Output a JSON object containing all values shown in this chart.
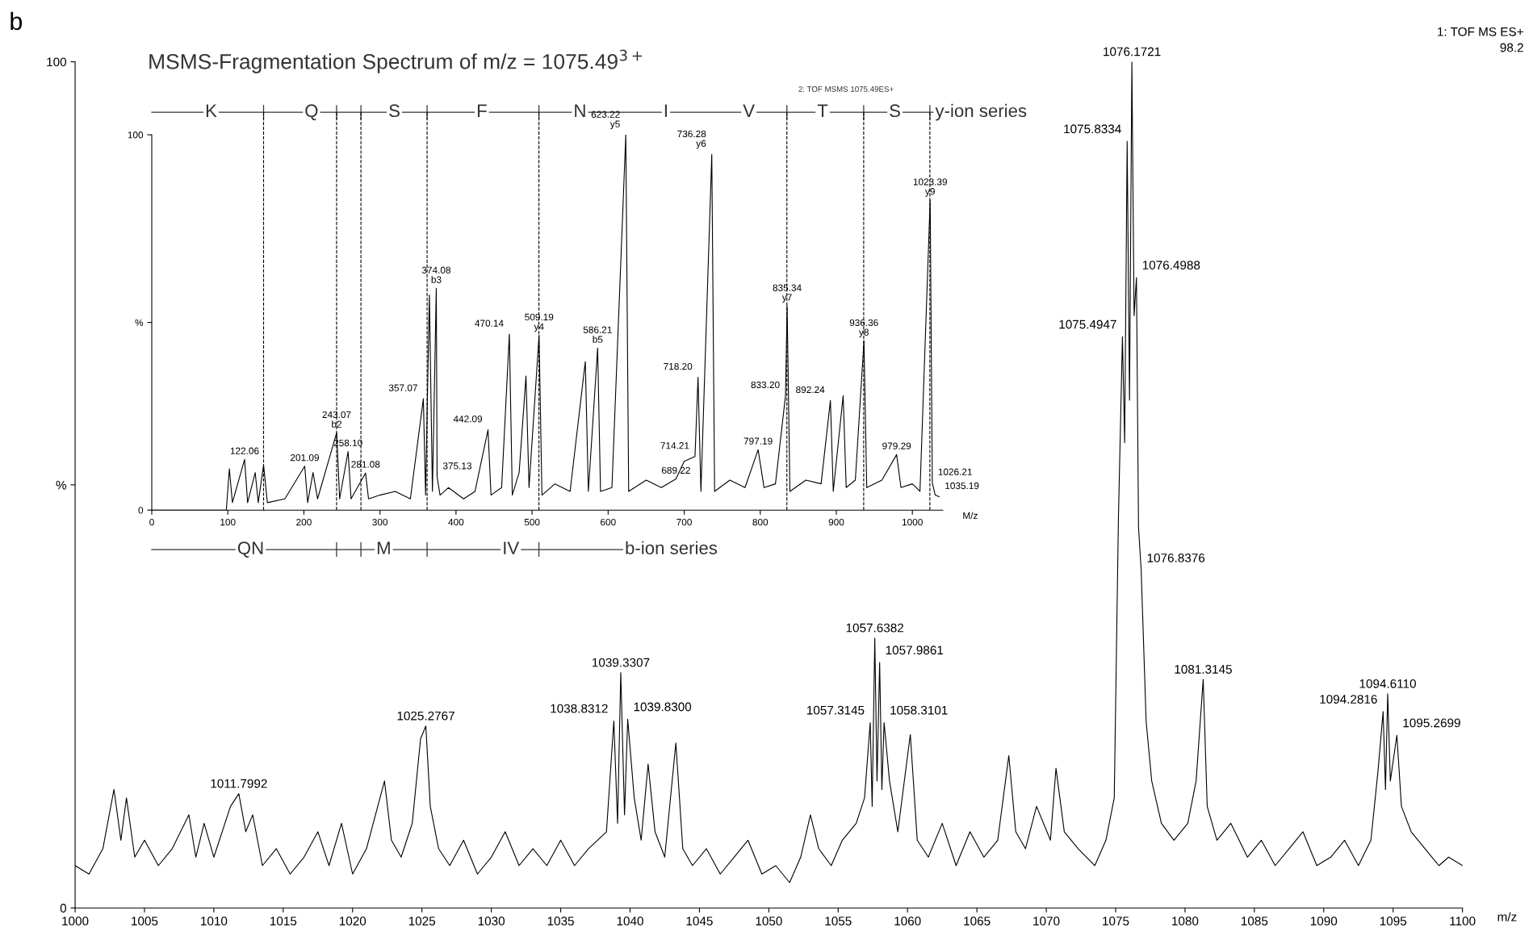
{
  "chart_data": [
    {
      "type": "line",
      "xlabel": "m/z",
      "xlim": [
        1000,
        1100
      ],
      "ylim": [
        0,
        100
      ],
      "xticks": [
        1000,
        1005,
        1010,
        1015,
        1020,
        1025,
        1030,
        1035,
        1040,
        1045,
        1050,
        1055,
        1060,
        1065,
        1070,
        1075,
        1080,
        1085,
        1090,
        1095,
        1100
      ],
      "yticks": [
        0,
        {
          "value": 50,
          "label": "%"
        },
        100
      ],
      "annotations": [
        "b",
        "1: TOF MS ES+",
        "98.2",
        {
          "text": "1011.7992",
          "x": 1011.8,
          "y": 13.5
        },
        {
          "text": "1025.2767",
          "x": 1025.28,
          "y": 21.5
        },
        {
          "text": "1038.8312",
          "x": 1038.83,
          "y": 22.1
        },
        {
          "text": "1039.3307",
          "x": 1039.33,
          "y": 27.8
        },
        {
          "text": "1039.8300",
          "x": 1039.83,
          "y": 22.3
        },
        {
          "text": "1057.3145",
          "x": 1057.31,
          "y": 21.9
        },
        {
          "text": "1057.6382",
          "x": 1057.64,
          "y": 31.9
        },
        {
          "text": "1057.9861",
          "x": 1057.99,
          "y": 29
        },
        {
          "text": "1058.3101",
          "x": 1058.31,
          "y": 21.9
        },
        {
          "text": "1075.4947",
          "x": 1075.49,
          "y": 67.5
        },
        {
          "text": "1075.8334",
          "x": 1075.83,
          "y": 90.6
        },
        {
          "text": "1076.1721",
          "x": 1076.17,
          "y": 100
        },
        {
          "text": "1076.4988",
          "x": 1076.5,
          "y": 74.5
        },
        {
          "text": "1076.8376",
          "x": 1076.84,
          "y": 39.9
        },
        {
          "text": "1081.3145",
          "x": 1081.31,
          "y": 27
        },
        {
          "text": "1094.2816",
          "x": 1094.28,
          "y": 23.2
        },
        {
          "text": "1094.6110",
          "x": 1094.61,
          "y": 25.3
        },
        {
          "text": "1095.2699",
          "x": 1095.27,
          "y": 20.4
        }
      ],
      "series": [
        {
          "color": "#000000",
          "x": [
            1000,
            1001,
            1002,
            1002.8,
            1003.3,
            1003.7,
            1004.3,
            1005,
            1006,
            1007,
            1008.2,
            1008.7,
            1009.3,
            1010,
            1011.2,
            1011.8,
            1012.3,
            1012.8,
            1013.5,
            1014.5,
            1015.5,
            1016.5,
            1017.5,
            1018.3,
            1019.2,
            1020,
            1021,
            1022.3,
            1022.8,
            1023.5,
            1024.3,
            1024.9,
            1025.28,
            1025.6,
            1026.2,
            1027,
            1028,
            1029,
            1030,
            1031,
            1032,
            1033,
            1034,
            1035,
            1036,
            1037,
            1038.3,
            1038.83,
            1039.1,
            1039.33,
            1039.6,
            1039.83,
            1040.3,
            1040.8,
            1041.3,
            1041.8,
            1042.5,
            1043.3,
            1043.8,
            1044.5,
            1045.5,
            1046.5,
            1047.5,
            1048.5,
            1049.5,
            1050.5,
            1051.5,
            1052.3,
            1053,
            1053.6,
            1054.5,
            1055.3,
            1056.3,
            1056.9,
            1057.31,
            1057.45,
            1057.64,
            1057.8,
            1057.99,
            1058.15,
            1058.31,
            1058.7,
            1059.3,
            1060.2,
            1060.7,
            1061.5,
            1062.5,
            1063.5,
            1064.5,
            1065.5,
            1066.5,
            1067.3,
            1067.8,
            1068.5,
            1069.3,
            1070.3,
            1070.7,
            1071.3,
            1072.3,
            1073.5,
            1074.3,
            1074.9,
            1075.2,
            1075.49,
            1075.65,
            1075.83,
            1076.0,
            1076.17,
            1076.33,
            1076.5,
            1076.65,
            1076.84,
            1077.2,
            1077.6,
            1078.3,
            1079.2,
            1080.2,
            1080.8,
            1081.31,
            1081.6,
            1082.3,
            1083.3,
            1084.5,
            1085.5,
            1086.5,
            1087.5,
            1088.5,
            1089.5,
            1090.5,
            1091.5,
            1092.5,
            1093.4,
            1093.9,
            1094.28,
            1094.45,
            1094.61,
            1094.8,
            1095.27,
            1095.6,
            1096.3,
            1097.3,
            1098.3,
            1099,
            1100
          ],
          "values": [
            5,
            4,
            7,
            14,
            8,
            13,
            6,
            8,
            5,
            7,
            11,
            6,
            10,
            6,
            12,
            13.5,
            9,
            11,
            5,
            7,
            4,
            6,
            9,
            5,
            10,
            4,
            7,
            15,
            8,
            6,
            10,
            20,
            21.5,
            12,
            7,
            5,
            8,
            4,
            6,
            9,
            5,
            7,
            5,
            8,
            5,
            7,
            9,
            22.1,
            10,
            27.8,
            11,
            22.3,
            13,
            8,
            17,
            9,
            6,
            19.5,
            7,
            5,
            7,
            4,
            6,
            8,
            4,
            5,
            3,
            6,
            11,
            7,
            5,
            8,
            10,
            13,
            21.9,
            12,
            31.9,
            15,
            29,
            14,
            21.9,
            15,
            9,
            20.5,
            8,
            6,
            10,
            5,
            9,
            6,
            8,
            18,
            9,
            7,
            12,
            8,
            16.5,
            9,
            7,
            5,
            8,
            13,
            46,
            67.5,
            55,
            90.6,
            60,
            100,
            70,
            74.5,
            45,
            39.9,
            22,
            15,
            10,
            8,
            10,
            15,
            27,
            12,
            8,
            10,
            6,
            8,
            5,
            7,
            9,
            5,
            6,
            8,
            5,
            8,
            16,
            23.2,
            14,
            25.3,
            15,
            20.4,
            12,
            9,
            7,
            5,
            6,
            5
          ]
        }
      ]
    },
    {
      "type": "line",
      "title": "MSMS-Fragmentation Spectrum of m/z = 1075.49$^{3+}$",
      "xlabel": "M/z",
      "xlim": [
        0,
        1040
      ],
      "ylim": [
        0,
        100
      ],
      "xticks": [
        0,
        100,
        200,
        300,
        400,
        500,
        600,
        700,
        800,
        900,
        1000
      ],
      "yticks": [
        0,
        {
          "value": 50,
          "label": "%"
        },
        100
      ],
      "annotations": [
        "K",
        "Q",
        "S",
        "F",
        "N",
        "I",
        "V",
        "T",
        "S",
        "y-ion series",
        "QN",
        "M",
        "IV",
        "b-ion series",
        "2: TOF MSMS 1075.49ES+",
        {
          "text": "122.06",
          "x": 122.06,
          "y": 13.5
        },
        {
          "text": "201.09",
          "x": 201.09,
          "y": 11.7
        },
        {
          "text": "243.07\nb2",
          "x": 243.07,
          "y": 20.6
        },
        {
          "text": "258.10",
          "x": 258.1,
          "y": 15.6
        },
        {
          "text": "281.08",
          "x": 281.08,
          "y": 9.9
        },
        {
          "text": "357.07",
          "x": 357.07,
          "y": 29.7
        },
        {
          "text": "374.08\nb3",
          "x": 374.08,
          "y": 59.1
        },
        {
          "text": "375.13",
          "x": 375.13,
          "y": 8.9
        },
        {
          "text": "442.09",
          "x": 442.09,
          "y": 21.4
        },
        {
          "text": "470.14",
          "x": 470.14,
          "y": 46.9
        },
        {
          "text": "509.19\ny4",
          "x": 509.19,
          "y": 46.6
        },
        {
          "text": "586.21\nb5",
          "x": 586.21,
          "y": 43.2
        },
        {
          "text": "623.22\ny5",
          "x": 623.22,
          "y": 100
        },
        {
          "text": "689.22",
          "x": 689.22,
          "y": 8.3
        },
        {
          "text": "714.21",
          "x": 714.21,
          "y": 14.3
        },
        {
          "text": "718.20",
          "x": 718.2,
          "y": 35.4
        },
        {
          "text": "736.28\ny6",
          "x": 736.28,
          "y": 94.8
        },
        {
          "text": "797.19",
          "x": 797.19,
          "y": 16.1
        },
        {
          "text": "833.20",
          "x": 833.2,
          "y": 30.5
        },
        {
          "text": "835.34\ny7",
          "x": 835.34,
          "y": 54.4
        },
        {
          "text": "892.24",
          "x": 892.24,
          "y": 29.2
        },
        {
          "text": "936.36\ny8",
          "x": 936.36,
          "y": 45.1
        },
        {
          "text": "979.29",
          "x": 979.29,
          "y": 14.8
        },
        {
          "text": "1023.39\ny9",
          "x": 1023.39,
          "y": 82.6
        },
        {
          "text": "1026.21",
          "x": 1026.21,
          "y": 7.3
        },
        {
          "text": "1035.19",
          "x": 1035.19,
          "y": 3.6
        }
      ],
      "ref_lines": [
        {
          "axis": "x",
          "value": 147,
          "line_style": "dashed"
        },
        {
          "axis": "x",
          "value": 243,
          "line_style": "dashed"
        },
        {
          "axis": "x",
          "value": 275,
          "line_style": "dashed"
        },
        {
          "axis": "x",
          "value": 362,
          "line_style": "dashed"
        },
        {
          "axis": "x",
          "value": 509,
          "line_style": "dashed"
        },
        {
          "axis": "x",
          "value": 835,
          "line_style": "dashed"
        },
        {
          "axis": "x",
          "value": 936,
          "line_style": "dashed"
        },
        {
          "axis": "x",
          "value": 1023,
          "line_style": "dashed"
        }
      ],
      "series": [
        {
          "color": "#000000",
          "x": [
            0,
            98,
            102,
            106,
            122.06,
            126,
            136,
            140,
            147,
            152,
            175,
            201.09,
            205,
            212,
            218,
            243.07,
            247,
            258.1,
            262,
            281.08,
            285,
            300,
            320,
            340,
            357.07,
            360,
            365,
            369,
            374.08,
            375.13,
            379,
            390,
            410,
            425,
            442.09,
            446,
            460,
            470.14,
            474,
            483,
            492,
            496,
            509.19,
            513,
            530,
            550,
            570,
            574,
            586.21,
            590,
            605,
            623.22,
            627,
            650,
            670,
            689.22,
            700,
            714.21,
            718.2,
            722,
            736.28,
            740,
            760,
            780,
            797.19,
            805,
            820,
            833.2,
            835.34,
            839,
            860,
            880,
            892.24,
            896,
            909,
            913,
            925,
            936.36,
            940,
            960,
            979.29,
            985,
            1000,
            1010,
            1023.39,
            1026.21,
            1030,
            1035.19
          ],
          "values": [
            0,
            0,
            11,
            2,
            13.5,
            2,
            10,
            2,
            12,
            2,
            3,
            11.7,
            2,
            10,
            3,
            20.6,
            3,
            15.6,
            3,
            9.9,
            3,
            4,
            5,
            3,
            29.7,
            4,
            57.3,
            5,
            59.1,
            8.9,
            4,
            6,
            3,
            5,
            21.4,
            4,
            6,
            46.9,
            4,
            10,
            35.7,
            6,
            46.6,
            4,
            7,
            5,
            39.6,
            5,
            43.2,
            5,
            6,
            100,
            5,
            8,
            6,
            8.3,
            13,
            14.3,
            35.4,
            5,
            94.8,
            5,
            8,
            6,
            16.1,
            6,
            7,
            30.5,
            54.4,
            5,
            8,
            7,
            29.2,
            5,
            30.5,
            6,
            8,
            45.1,
            6,
            8,
            14.8,
            6,
            7,
            5,
            82.6,
            7.3,
            4,
            3.6
          ]
        }
      ]
    }
  ]
}
